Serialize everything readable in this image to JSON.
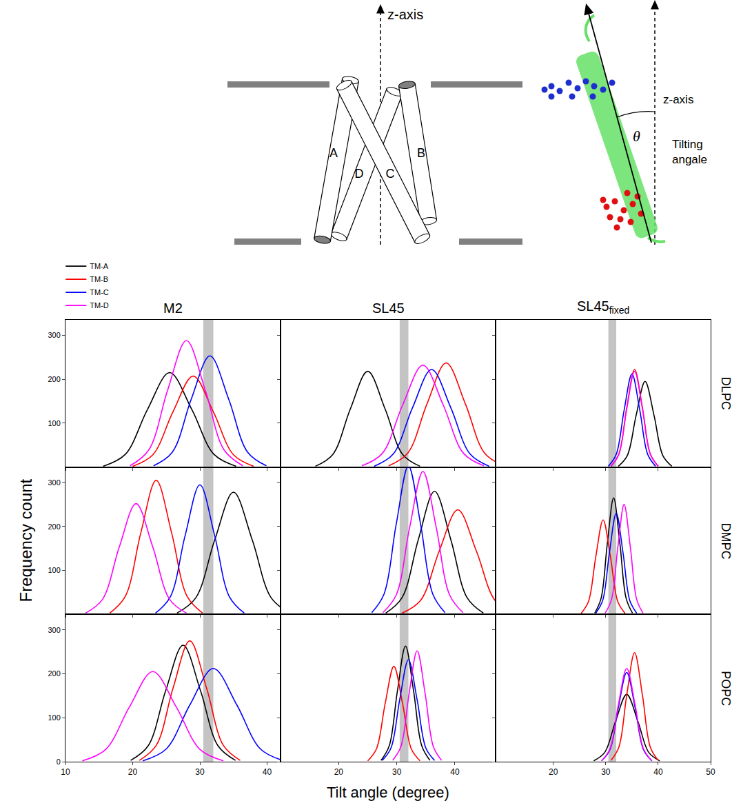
{
  "diagram": {
    "z_axis_label": "z-axis",
    "helix_labels": [
      "A",
      "B",
      "C",
      "D"
    ],
    "tilt_z_axis_label": "z-axis",
    "angle_symbol": "θ",
    "angle_label": "Tilting angale"
  },
  "chart_data": {
    "type": "line",
    "x_label": "Tilt angle (degree)",
    "y_label": "Frequency count",
    "legend": "top left",
    "grid": false,
    "band": [
      30.5,
      32
    ],
    "series": [
      {
        "name": "TM-A",
        "color": "#000000"
      },
      {
        "name": "TM-B",
        "color": "#ff0000"
      },
      {
        "name": "TM-C",
        "color": "#0000ff"
      },
      {
        "name": "TM-D",
        "color": "#ff00ff"
      }
    ],
    "columns": [
      {
        "title": "M2",
        "xlim": [
          10,
          42
        ],
        "xticks": [
          10,
          20,
          30,
          40
        ]
      },
      {
        "title": "SL45",
        "xlim": [
          10,
          47
        ],
        "xticks": [
          20,
          30,
          40
        ]
      },
      {
        "title": "SL45",
        "subscript": "fixed",
        "xlim": [
          9,
          50
        ],
        "xticks": [
          20,
          30,
          40,
          50
        ]
      }
    ],
    "rows": [
      {
        "title": "DLPC",
        "ylim": [
          0,
          335
        ],
        "yticks": [
          100,
          200,
          300
        ]
      },
      {
        "title": "DMPC",
        "ylim": [
          0,
          335
        ],
        "yticks": [
          100,
          200,
          300
        ]
      },
      {
        "title": "POPC",
        "ylim": [
          0,
          335
        ],
        "yticks": [
          0,
          100,
          200,
          300
        ]
      }
    ],
    "panels": [
      [
        [
          {
            "x": [
              15.6,
              18.9,
              22.2,
              25.5,
              28.8,
              32.1,
              35.4
            ],
            "values": [
              2,
              29,
              131,
              215,
              131,
              29,
              2
            ]
          },
          {
            "x": [
              20,
              23,
              26,
              29,
              32,
              35,
              38
            ],
            "values": [
              2,
              28,
              126,
              207,
              126,
              28,
              2
            ]
          },
          {
            "x": [
              23.1,
              25.9,
              28.7,
              31.5,
              34.3,
              37.1,
              39.9
            ],
            "values": [
              3,
              34,
              154,
              253,
              154,
              34,
              3
            ]
          },
          {
            "x": [
              19.6,
              22.4,
              25.2,
              28,
              30.8,
              33.6,
              36.4
            ],
            "values": [
              3,
              39,
              175,
              288,
              175,
              39,
              3
            ]
          }
        ],
        [
          {
            "x": [
              16,
              19,
              22,
              25,
              28,
              31,
              34
            ],
            "values": [
              2,
              29,
              132,
              218,
              132,
              29,
              2
            ]
          },
          {
            "x": [
              28.6,
              31.9,
              35.2,
              38.5,
              41.8,
              45.1,
              48.4
            ],
            "values": [
              3,
              32,
              144,
              237,
              144,
              32,
              3
            ]
          },
          {
            "x": [
              26.1,
              29.4,
              32.7,
              36,
              39.3,
              42.6,
              45.9
            ],
            "values": [
              2,
              30,
              135,
              222,
              135,
              30,
              2
            ]
          },
          {
            "x": [
              24,
              27.5,
              31,
              34.5,
              38,
              41.5,
              45
            ],
            "values": [
              3,
              31,
              141,
              232,
              141,
              31,
              3
            ]
          }
        ],
        [
          {
            "x": [
              32.4,
              34.1,
              35.8,
              37.5,
              39.2,
              40.9,
              42.6
            ],
            "values": [
              2,
              26,
              118,
              195,
              118,
              26,
              2
            ]
          },
          {
            "x": [
              31,
              32.5,
              34,
              35.5,
              37,
              38.5,
              40
            ],
            "values": [
              2,
              30,
              135,
              222,
              135,
              30,
              2
            ]
          },
          {
            "x": [
              30.5,
              32,
              33.5,
              35,
              36.5,
              38,
              39.5
            ],
            "values": [
              2,
              29,
              129,
              212,
              129,
              29,
              2
            ]
          },
          {
            "x": [
              31,
              32.5,
              34,
              35.5,
              37,
              38.5,
              40
            ],
            "values": [
              2,
              29,
              132,
              218,
              132,
              29,
              2
            ]
          }
        ]
      ],
      [
        [
          {
            "x": [
              26.6,
              29.4,
              32.2,
              35,
              37.8,
              40.6,
              43.4
            ],
            "values": [
              3,
              38,
              169,
              278,
              169,
              38,
              3
            ]
          },
          {
            "x": [
              16.6,
              18.9,
              21.2,
              23.5,
              25.8,
              28.1,
              30.4
            ],
            "values": [
              3,
              41,
              185,
              305,
              185,
              41,
              3
            ]
          },
          {
            "x": [
              23.4,
              25.6,
              27.8,
              30,
              32.2,
              34.4,
              36.6
            ],
            "values": [
              3,
              40,
              179,
              295,
              179,
              40,
              3
            ]
          },
          {
            "x": [
              13,
              15.5,
              18,
              20.5,
              23,
              25.5,
              28
            ],
            "values": [
              3,
              34,
              153,
              252,
              153,
              34,
              3
            ]
          }
        ],
        [
          {
            "x": [
              28.1,
              30.9,
              33.7,
              36.5,
              39.3,
              42.1,
              44.9
            ],
            "values": [
              3,
              38,
              170,
              280,
              170,
              38,
              3
            ]
          },
          {
            "x": [
              30.9,
              34.1,
              37.3,
              40.5,
              43.7,
              46.9,
              50.1
            ],
            "values": [
              3,
              32,
              144,
              238,
              144,
              32,
              3
            ]
          },
          {
            "x": [
              25.7,
              27.8,
              29.9,
              32,
              34.1,
              36.2,
              38.3
            ],
            "values": [
              4,
              46,
              205,
              338,
              205,
              46,
              4
            ]
          },
          {
            "x": [
              27.6,
              29.9,
              32.2,
              34.5,
              36.8,
              39.1,
              41.4
            ],
            "values": [
              4,
              44,
              197,
              325,
              197,
              44,
              4
            ]
          }
        ],
        [
          {
            "x": [
              27.9,
              29.1,
              30.3,
              31.5,
              32.7,
              33.9,
              35.1
            ],
            "values": [
              3,
              36,
              161,
              265,
              161,
              36,
              3
            ]
          },
          {
            "x": [
              25.3,
              26.7,
              28.1,
              29.5,
              30.9,
              32.3,
              33.7
            ],
            "values": [
              2,
              29,
              131,
              215,
              131,
              29,
              2
            ]
          },
          {
            "x": [
              28.1,
              29.4,
              30.7,
              32,
              33.3,
              34.6,
              35.9
            ],
            "values": [
              3,
              31,
              140,
              230,
              140,
              31,
              3
            ]
          },
          {
            "x": [
              29.9,
              31.1,
              32.3,
              33.5,
              34.7,
              35.9,
              37.1
            ],
            "values": [
              3,
              34,
              152,
              250,
              152,
              34,
              3
            ]
          }
        ]
      ],
      [
        [
          {
            "x": [
              19.7,
              22.3,
              24.9,
              27.5,
              30.1,
              32.7,
              35.3
            ],
            "values": [
              3,
              36,
              161,
              265,
              161,
              36,
              3
            ]
          },
          {
            "x": [
              21,
              23.5,
              26,
              28.5,
              31,
              33.5,
              36
            ],
            "values": [
              3,
              37,
              167,
              275,
              167,
              37,
              3
            ]
          },
          {
            "x": [
              21.5,
              25,
              28.5,
              32,
              35.5,
              39,
              42.5
            ],
            "values": [
              2,
              29,
              129,
              212,
              129,
              29,
              2
            ]
          },
          {
            "x": [
              12.5,
              16,
              19.5,
              23,
              26.5,
              30,
              33.5
            ],
            "values": [
              2,
              28,
              124,
              205,
              124,
              28,
              2
            ]
          }
        ],
        [
          {
            "x": [
              27.3,
              28.7,
              30.1,
              31.5,
              32.9,
              34.3,
              35.7
            ],
            "values": [
              3,
              36,
              160,
              263,
              160,
              36,
              3
            ]
          },
          {
            "x": [
              25,
              26.5,
              28,
              29.5,
              31,
              32.5,
              34
            ],
            "values": [
              2,
              29,
              132,
              217,
              132,
              29,
              2
            ]
          },
          {
            "x": [
              27.5,
              29,
              30.5,
              32,
              33.5,
              35,
              36.5
            ],
            "values": [
              3,
              31,
              141,
              232,
              141,
              31,
              3
            ]
          },
          {
            "x": [
              29.3,
              30.7,
              32.1,
              33.5,
              34.9,
              36.3,
              37.7
            ],
            "values": [
              3,
              34,
              153,
              252,
              153,
              34,
              3
            ]
          }
        ],
        [
          {
            "x": [
              27.7,
              29.8,
              31.9,
              34,
              36.1,
              38.2,
              40.3
            ],
            "values": [
              2,
              21,
              93,
              153,
              93,
              21,
              2
            ]
          },
          {
            "x": [
              31,
              32.5,
              34,
              35.5,
              37,
              38.5,
              40
            ],
            "values": [
              3,
              33,
              151,
              248,
              151,
              33,
              3
            ]
          },
          {
            "x": [
              29.2,
              30.8,
              32.4,
              34,
              35.6,
              37.2,
              38.8
            ],
            "values": [
              2,
              27,
              123,
              203,
              123,
              27,
              2
            ]
          },
          {
            "x": [
              29.2,
              30.8,
              32.4,
              34,
              35.6,
              37.2,
              38.8
            ],
            "values": [
              2,
              29,
              129,
              212,
              129,
              29,
              2
            ]
          }
        ]
      ]
    ]
  }
}
